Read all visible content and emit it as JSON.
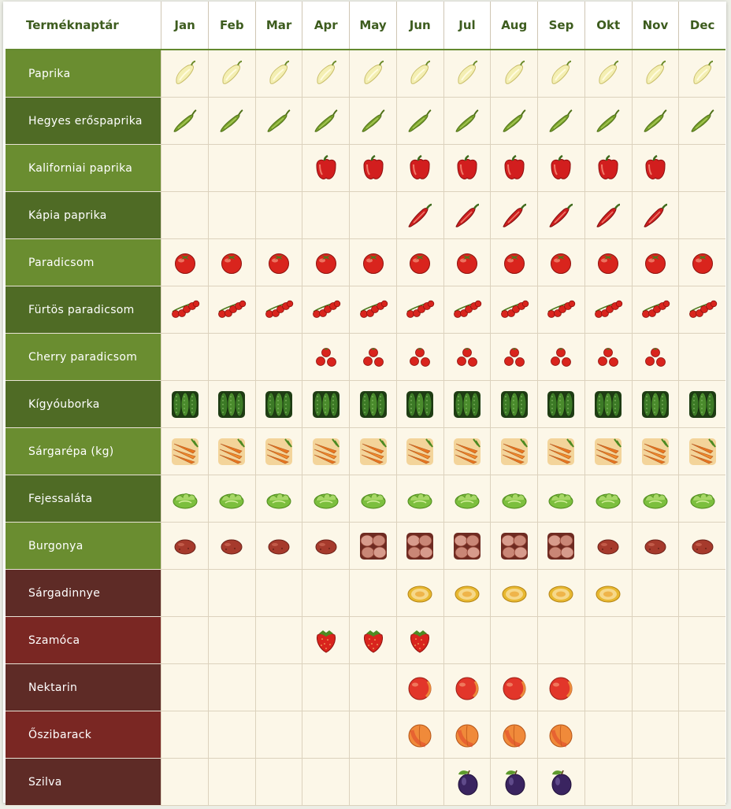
{
  "header": {
    "title": "Terméknaptár",
    "months": [
      "Jan",
      "Feb",
      "Mar",
      "Apr",
      "May",
      "Jun",
      "Jul",
      "Aug",
      "Sep",
      "Okt",
      "Nov",
      "Dec"
    ]
  },
  "colors": {
    "veg_light": "#6a8d30",
    "veg_dark": "#4f6b25",
    "fruit_light": "#7a2723",
    "fruit_dark": "#5e2b26",
    "cell_bg": "#fcf7e8",
    "header_text": "#3d5c1e"
  },
  "products": [
    {
      "name": "Paprika",
      "group": "veg",
      "icon": "white-pepper-icon",
      "months": [
        1,
        2,
        3,
        4,
        5,
        6,
        7,
        8,
        9,
        10,
        11,
        12
      ]
    },
    {
      "name": "Hegyes erőspaprika",
      "group": "veg",
      "icon": "green-chili-icon",
      "months": [
        1,
        2,
        3,
        4,
        5,
        6,
        7,
        8,
        9,
        10,
        11,
        12
      ]
    },
    {
      "name": "Kaliforniai paprika",
      "group": "veg",
      "icon": "red-bell-pepper-icon",
      "months": [
        4,
        5,
        6,
        7,
        8,
        9,
        10,
        11
      ]
    },
    {
      "name": "Kápia paprika",
      "group": "veg",
      "icon": "kapia-pepper-icon",
      "months": [
        6,
        7,
        8,
        9,
        10,
        11
      ]
    },
    {
      "name": "Paradicsom",
      "group": "veg",
      "icon": "tomato-icon",
      "months": [
        1,
        2,
        3,
        4,
        5,
        6,
        7,
        8,
        9,
        10,
        11,
        12
      ]
    },
    {
      "name": "Fürtös paradicsom",
      "group": "veg",
      "icon": "vine-tomato-icon",
      "months": [
        1,
        2,
        3,
        4,
        5,
        6,
        7,
        8,
        9,
        10,
        11,
        12
      ]
    },
    {
      "name": "Cherry paradicsom",
      "group": "veg",
      "icon": "cherry-tomato-icon",
      "months": [
        4,
        5,
        6,
        7,
        8,
        9,
        10,
        11
      ]
    },
    {
      "name": "Kígyóuborka",
      "group": "veg",
      "icon": "cucumber-icon",
      "months": [
        1,
        2,
        3,
        4,
        5,
        6,
        7,
        8,
        9,
        10,
        11,
        12
      ]
    },
    {
      "name": "Sárgarépa (kg)",
      "group": "veg",
      "icon": "carrot-icon",
      "months": [
        1,
        2,
        3,
        4,
        5,
        6,
        7,
        8,
        9,
        10,
        11,
        12
      ]
    },
    {
      "name": "Fejessaláta",
      "group": "veg",
      "icon": "lettuce-icon",
      "months": [
        1,
        2,
        3,
        4,
        5,
        6,
        7,
        8,
        9,
        10,
        11,
        12
      ]
    },
    {
      "name": "Burgonya",
      "group": "veg",
      "icon": "potato-icon",
      "months": [
        1,
        2,
        3,
        4,
        5,
        6,
        7,
        8,
        9,
        10,
        11,
        12
      ],
      "alt_icon": "potato-pile-icon",
      "alt_months": [
        5,
        6,
        7,
        8,
        9
      ]
    },
    {
      "name": "Sárgadinnye",
      "group": "fruit",
      "icon": "melon-icon",
      "months": [
        6,
        7,
        8,
        9,
        10
      ]
    },
    {
      "name": "Szamóca",
      "group": "fruit",
      "icon": "strawberry-icon",
      "months": [
        4,
        5,
        6
      ]
    },
    {
      "name": "Nektarin",
      "group": "fruit",
      "icon": "nectarine-icon",
      "months": [
        6,
        7,
        8,
        9
      ]
    },
    {
      "name": "Őszibarack",
      "group": "fruit",
      "icon": "peach-icon",
      "months": [
        6,
        7,
        8,
        9
      ]
    },
    {
      "name": "Szilva",
      "group": "fruit",
      "icon": "plum-icon",
      "months": [
        7,
        8,
        9
      ]
    }
  ]
}
